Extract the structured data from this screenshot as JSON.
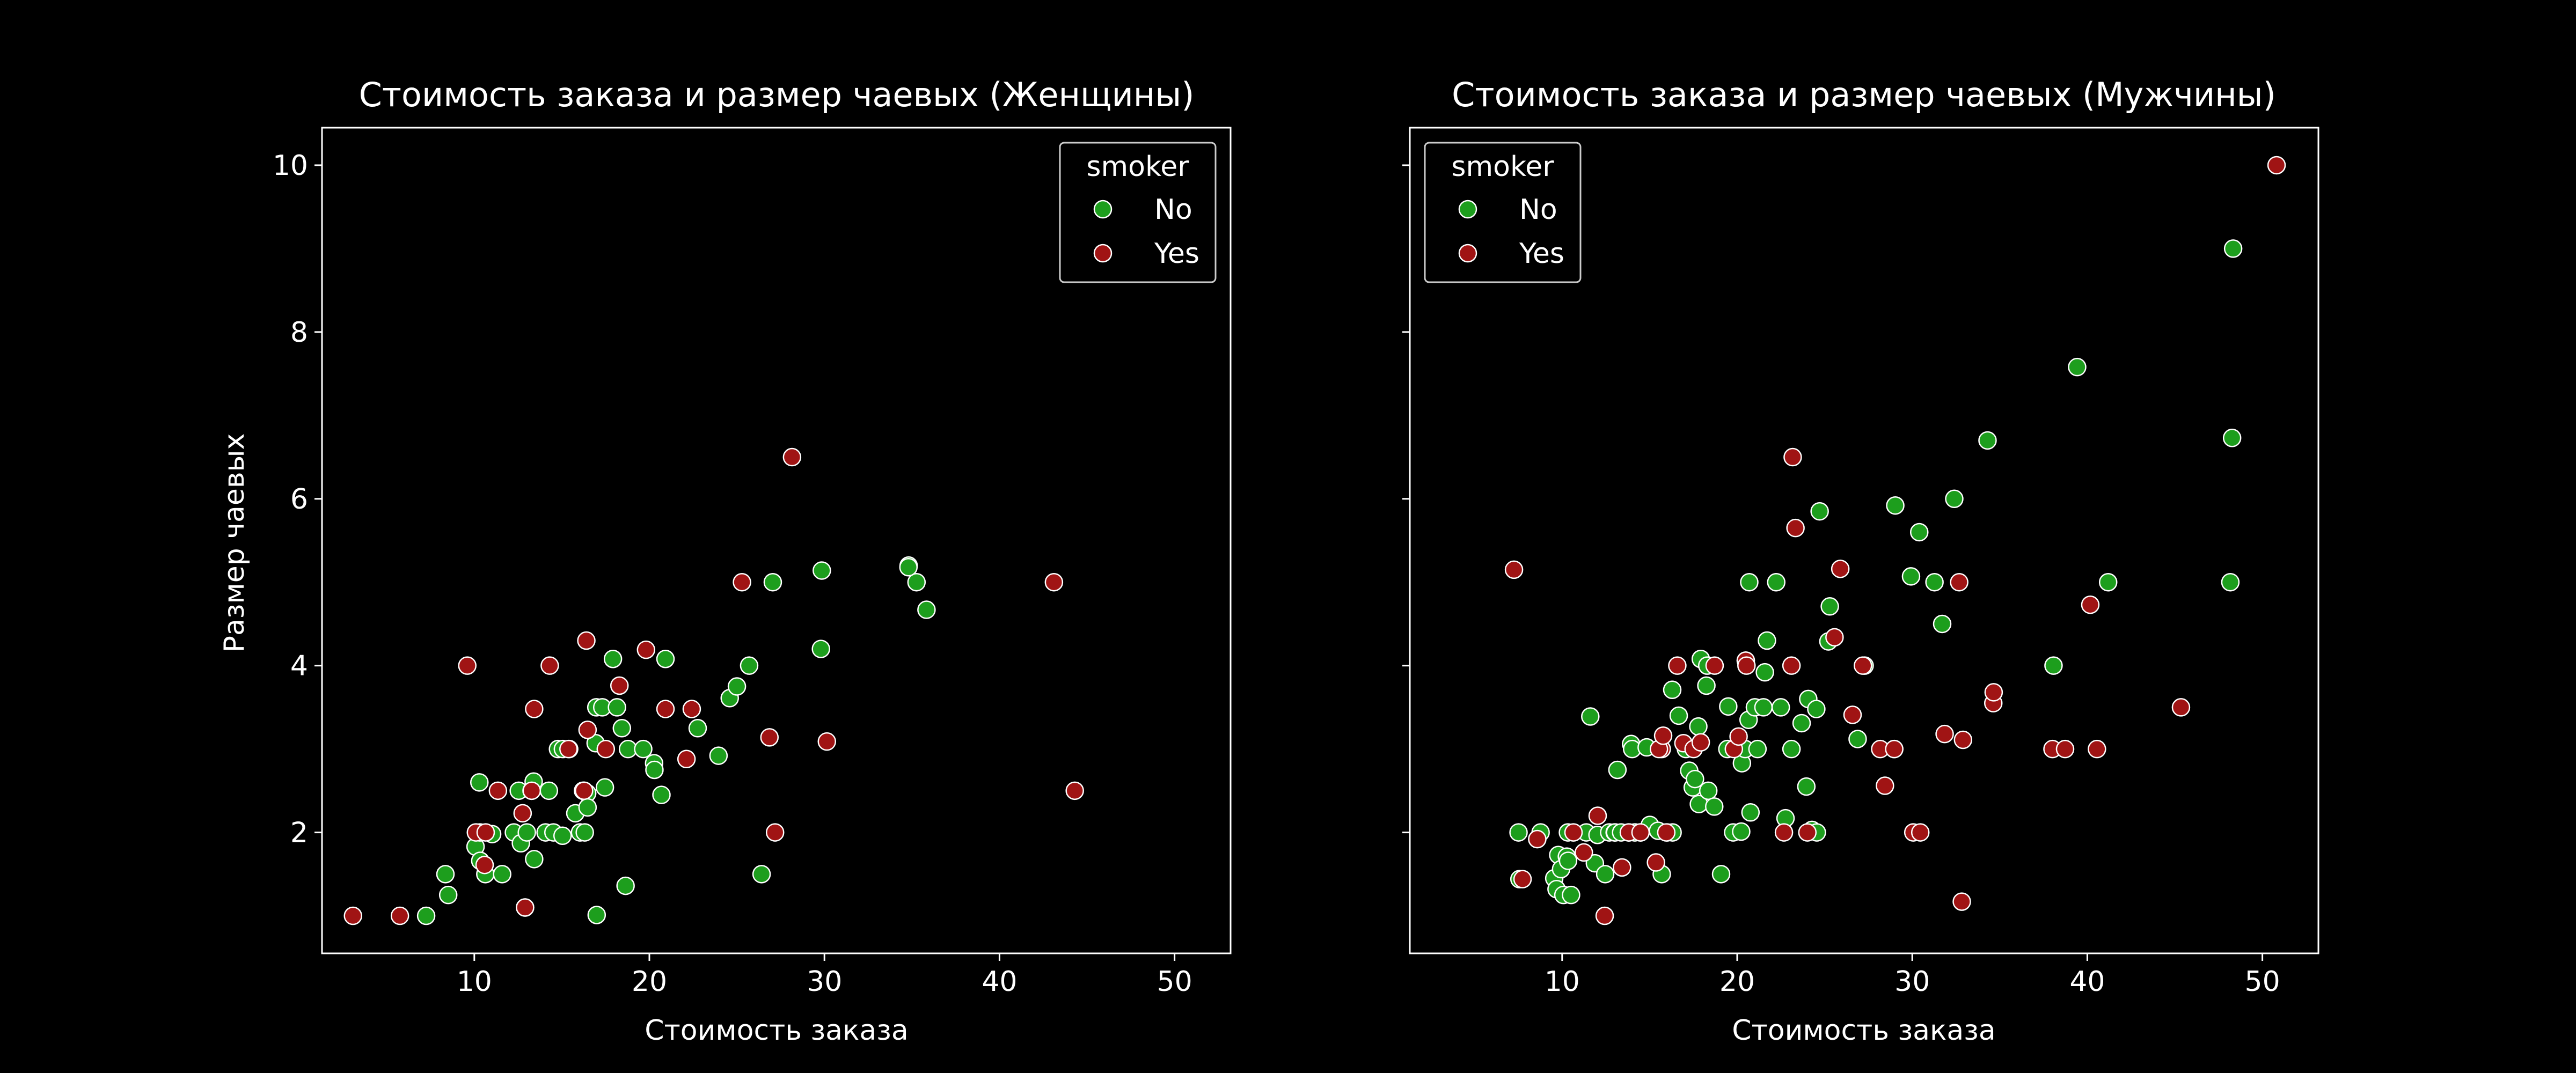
{
  "colors": {
    "background": "#000000",
    "foreground": "#ffffff",
    "no": "#1d9e1d",
    "yes": "#a01414"
  },
  "chart_data": [
    {
      "type": "scatter",
      "title": "Стоимость заказа и размер чаевых (Женщины)",
      "xlabel": "Стоимость заказа",
      "ylabel": "Размер чаевых",
      "xlim": [
        1.3,
        53.2
      ],
      "ylim": [
        0.55,
        10.45
      ],
      "xticks": [
        10,
        20,
        30,
        40,
        50
      ],
      "yticks": [
        2,
        4,
        6,
        8,
        10
      ],
      "grid": false,
      "legend": {
        "title": "smoker",
        "position": "top-right",
        "entries": [
          "No",
          "Yes"
        ]
      },
      "series": [
        {
          "name": "No",
          "color": "#1d9e1d",
          "points": [
            [
              7.25,
              1.0
            ],
            [
              8.35,
              1.5
            ],
            [
              8.51,
              1.25
            ],
            [
              10.07,
              1.83
            ],
            [
              10.33,
              2.0
            ],
            [
              10.34,
              1.66
            ],
            [
              10.29,
              2.6
            ],
            [
              10.63,
              1.5
            ],
            [
              11.02,
              1.98
            ],
            [
              11.59,
              1.5
            ],
            [
              12.26,
              2.0
            ],
            [
              12.54,
              2.5
            ],
            [
              12.66,
              1.87
            ],
            [
              12.9,
              1.1
            ],
            [
              13.0,
              2.0
            ],
            [
              13.27,
              2.5
            ],
            [
              13.39,
              2.61
            ],
            [
              13.42,
              1.68
            ],
            [
              14.07,
              2.0
            ],
            [
              14.26,
              2.5
            ],
            [
              14.52,
              2.0
            ],
            [
              14.78,
              3.0
            ],
            [
              15.04,
              1.96
            ],
            [
              15.06,
              3.0
            ],
            [
              15.42,
              3.0
            ],
            [
              15.77,
              2.23
            ],
            [
              16.04,
              2.0
            ],
            [
              16.27,
              2.5
            ],
            [
              16.31,
              2.0
            ],
            [
              16.45,
              2.47
            ],
            [
              16.47,
              2.3
            ],
            [
              16.93,
              3.07
            ],
            [
              16.97,
              3.5
            ],
            [
              16.99,
              1.01
            ],
            [
              17.31,
              3.5
            ],
            [
              17.46,
              2.54
            ],
            [
              17.92,
              4.08
            ],
            [
              18.15,
              3.5
            ],
            [
              18.43,
              3.25
            ],
            [
              18.64,
              1.36
            ],
            [
              18.78,
              3.0
            ],
            [
              19.65,
              3.0
            ],
            [
              20.27,
              2.83
            ],
            [
              20.29,
              2.75
            ],
            [
              20.69,
              2.45
            ],
            [
              20.92,
              4.08
            ],
            [
              22.76,
              3.25
            ],
            [
              23.95,
              2.92
            ],
            [
              24.59,
              3.61
            ],
            [
              25.0,
              3.75
            ],
            [
              25.7,
              4.0
            ],
            [
              26.41,
              1.5
            ],
            [
              27.05,
              5.0
            ],
            [
              29.85,
              5.14
            ],
            [
              29.8,
              4.2
            ],
            [
              34.81,
              5.2
            ],
            [
              35.26,
              5.0
            ],
            [
              35.83,
              4.67
            ],
            [
              34.8,
              5.18
            ]
          ]
        },
        {
          "name": "Yes",
          "color": "#a01414",
          "points": [
            [
              3.07,
              1.0
            ],
            [
              5.75,
              1.0
            ],
            [
              9.6,
              4.0
            ],
            [
              10.09,
              2.0
            ],
            [
              10.59,
              1.61
            ],
            [
              10.65,
              2.0
            ],
            [
              11.35,
              2.5
            ],
            [
              12.9,
              1.1
            ],
            [
              12.76,
              2.23
            ],
            [
              13.28,
              2.5
            ],
            [
              13.42,
              3.48
            ],
            [
              14.31,
              4.0
            ],
            [
              15.38,
              3.0
            ],
            [
              16.21,
              2.5
            ],
            [
              16.27,
              2.5
            ],
            [
              16.4,
              4.3
            ],
            [
              16.47,
              3.23
            ],
            [
              17.51,
              3.0
            ],
            [
              18.29,
              3.76
            ],
            [
              19.81,
              4.19
            ],
            [
              20.92,
              3.48
            ],
            [
              22.12,
              2.88
            ],
            [
              22.42,
              3.48
            ],
            [
              25.29,
              5.0
            ],
            [
              26.86,
              3.14
            ],
            [
              27.18,
              2.0
            ],
            [
              28.15,
              6.5
            ],
            [
              30.14,
              3.09
            ],
            [
              43.11,
              5.0
            ],
            [
              44.3,
              2.5
            ]
          ]
        }
      ]
    },
    {
      "type": "scatter",
      "title": "Стоимость заказа и размер чаевых (Мужчины)",
      "xlabel": "Стоимость заказа",
      "ylabel": "",
      "xlim": [
        1.3,
        53.2
      ],
      "ylim": [
        0.55,
        10.45
      ],
      "xticks": [
        10,
        20,
        30,
        40,
        50
      ],
      "yticks": [
        2,
        4,
        6,
        8,
        10
      ],
      "grid": false,
      "legend": {
        "title": "smoker",
        "position": "top-left",
        "entries": [
          "No",
          "Yes"
        ]
      },
      "series": [
        {
          "name": "No",
          "color": "#1d9e1d",
          "points": [
            [
              7.51,
              2.0
            ],
            [
              7.56,
              1.44
            ],
            [
              8.58,
              1.92
            ],
            [
              8.77,
              2.0
            ],
            [
              9.55,
              1.45
            ],
            [
              9.68,
              1.32
            ],
            [
              9.78,
              1.73
            ],
            [
              9.94,
              1.56
            ],
            [
              10.27,
              1.71
            ],
            [
              10.34,
              1.66
            ],
            [
              10.07,
              1.25
            ],
            [
              10.51,
              1.25
            ],
            [
              10.33,
              2.0
            ],
            [
              11.38,
              2.0
            ],
            [
              11.87,
              1.63
            ],
            [
              11.61,
              3.39
            ],
            [
              12.02,
              1.97
            ],
            [
              12.46,
              1.5
            ],
            [
              12.69,
              2.0
            ],
            [
              13.0,
              2.0
            ],
            [
              13.03,
              2.0
            ],
            [
              13.16,
              2.75
            ],
            [
              13.37,
              2.0
            ],
            [
              13.81,
              2.0
            ],
            [
              13.94,
              3.06
            ],
            [
              14.0,
              3.0
            ],
            [
              14.15,
              2.0
            ],
            [
              14.48,
              2.0
            ],
            [
              14.83,
              3.02
            ],
            [
              15.01,
              2.09
            ],
            [
              15.48,
              2.02
            ],
            [
              15.69,
              1.5
            ],
            [
              16.0,
              2.0
            ],
            [
              16.29,
              3.71
            ],
            [
              16.31,
              2.0
            ],
            [
              16.66,
              3.4
            ],
            [
              17.07,
              3.0
            ],
            [
              17.26,
              2.74
            ],
            [
              17.46,
              2.54
            ],
            [
              17.59,
              2.64
            ],
            [
              17.78,
              3.27
            ],
            [
              17.81,
              2.34
            ],
            [
              17.92,
              4.08
            ],
            [
              18.24,
              3.76
            ],
            [
              18.29,
              4.0
            ],
            [
              18.35,
              2.5
            ],
            [
              18.69,
              2.31
            ],
            [
              19.08,
              1.5
            ],
            [
              19.44,
              3.0
            ],
            [
              19.49,
              3.51
            ],
            [
              19.77,
              2.0
            ],
            [
              20.23,
              2.01
            ],
            [
              20.27,
              2.83
            ],
            [
              20.45,
              3.0
            ],
            [
              20.49,
              4.06
            ],
            [
              20.65,
              3.35
            ],
            [
              20.69,
              5.0
            ],
            [
              20.76,
              2.24
            ],
            [
              21.01,
              3.5
            ],
            [
              21.16,
              3.0
            ],
            [
              21.5,
              3.5
            ],
            [
              21.58,
              3.92
            ],
            [
              21.7,
              4.3
            ],
            [
              22.23,
              5.0
            ],
            [
              22.49,
              3.5
            ],
            [
              22.76,
              2.17
            ],
            [
              23.1,
              3.0
            ],
            [
              23.68,
              3.31
            ],
            [
              24.06,
              3.6
            ],
            [
              24.27,
              2.03
            ],
            [
              24.55,
              2.0
            ],
            [
              24.71,
              5.85
            ],
            [
              25.21,
              4.29
            ],
            [
              25.29,
              4.71
            ],
            [
              24.52,
              3.48
            ],
            [
              27.28,
              4.0
            ],
            [
              28.97,
              3.0
            ],
            [
              29.03,
              5.92
            ],
            [
              29.93,
              5.07
            ],
            [
              30.4,
              5.6
            ],
            [
              31.27,
              5.0
            ],
            [
              31.71,
              4.5
            ],
            [
              32.4,
              6.0
            ],
            [
              34.3,
              6.7
            ],
            [
              38.07,
              4.0
            ],
            [
              39.42,
              7.58
            ],
            [
              41.19,
              5.0
            ],
            [
              48.17,
              5.0
            ],
            [
              48.27,
              6.73
            ],
            [
              48.33,
              9.0
            ],
            [
              26.88,
              3.12
            ],
            [
              23.95,
              2.55
            ]
          ]
        },
        {
          "name": "Yes",
          "color": "#a01414",
          "points": [
            [
              7.25,
              5.15
            ],
            [
              7.74,
              1.44
            ],
            [
              8.58,
              1.92
            ],
            [
              10.65,
              2.0
            ],
            [
              11.24,
              1.76
            ],
            [
              12.03,
              2.2
            ],
            [
              12.43,
              1.0
            ],
            [
              13.42,
              1.58
            ],
            [
              13.81,
              2.0
            ],
            [
              14.48,
              2.0
            ],
            [
              15.36,
              1.64
            ],
            [
              15.69,
              3.0
            ],
            [
              15.53,
              3.0
            ],
            [
              15.77,
              3.16
            ],
            [
              16.58,
              4.0
            ],
            [
              16.93,
              3.07
            ],
            [
              17.51,
              3.0
            ],
            [
              18.71,
              4.0
            ],
            [
              17.92,
              3.08
            ],
            [
              19.81,
              3.0
            ],
            [
              20.08,
              3.15
            ],
            [
              20.49,
              4.06
            ],
            [
              20.53,
              4.0
            ],
            [
              22.67,
              2.0
            ],
            [
              23.17,
              6.5
            ],
            [
              23.33,
              5.65
            ],
            [
              24.01,
              2.0
            ],
            [
              25.56,
              4.34
            ],
            [
              25.89,
              5.16
            ],
            [
              26.59,
              3.41
            ],
            [
              27.18,
              4.0
            ],
            [
              28.17,
              3.0
            ],
            [
              28.44,
              2.56
            ],
            [
              28.97,
              3.0
            ],
            [
              30.06,
              2.0
            ],
            [
              30.46,
              2.0
            ],
            [
              31.85,
              3.18
            ],
            [
              32.68,
              5.0
            ],
            [
              32.83,
              1.17
            ],
            [
              32.9,
              3.11
            ],
            [
              34.63,
              3.55
            ],
            [
              34.65,
              3.68
            ],
            [
              38.01,
              3.0
            ],
            [
              38.73,
              3.0
            ],
            [
              40.17,
              4.73
            ],
            [
              40.55,
              3.0
            ],
            [
              45.35,
              3.5
            ],
            [
              50.81,
              10.0
            ],
            [
              23.1,
              4.0
            ],
            [
              15.95,
              2.0
            ]
          ]
        }
      ]
    }
  ]
}
